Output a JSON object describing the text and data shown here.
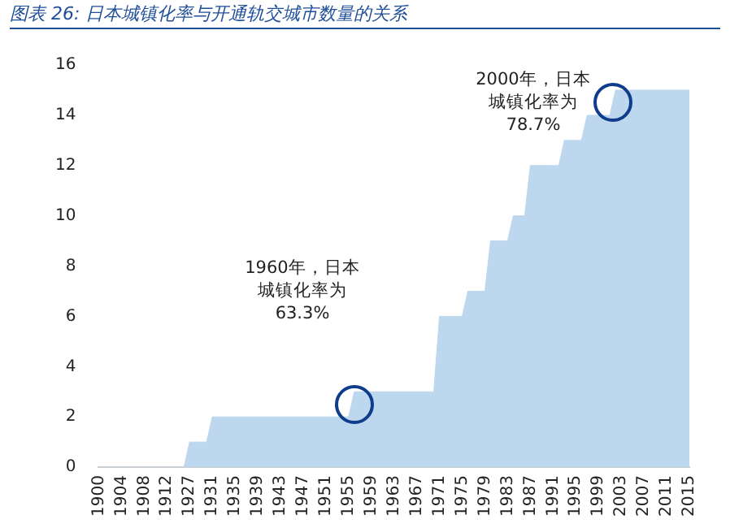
{
  "chart_data": {
    "type": "area",
    "title": "图表 26: 日本城镇化率与开通轨交城市数量的关系",
    "categories": [
      "1900",
      null,
      null,
      null,
      "1904",
      null,
      null,
      null,
      "1908",
      null,
      null,
      null,
      "1912",
      null,
      null,
      null,
      "1927",
      null,
      null,
      null,
      "1931",
      null,
      null,
      null,
      "1935",
      null,
      null,
      null,
      "1939",
      null,
      null,
      null,
      "1943",
      null,
      null,
      null,
      "1947",
      null,
      null,
      null,
      "1951",
      null,
      null,
      null,
      "1955",
      null,
      null,
      null,
      "1959",
      null,
      null,
      null,
      "1963",
      null,
      null,
      null,
      "1967",
      null,
      null,
      null,
      "1971",
      null,
      null,
      null,
      "1975",
      null,
      null,
      null,
      "1979",
      null,
      null,
      null,
      "1983",
      null,
      null,
      null,
      "1987",
      null,
      null,
      null,
      "1991",
      null,
      null,
      null,
      "1995",
      null,
      null,
      null,
      "1999",
      null,
      null,
      null,
      "2003",
      null,
      null,
      null,
      "2007",
      null,
      null,
      null,
      "2011",
      null,
      null,
      null,
      "2015"
    ],
    "values": [
      0,
      0,
      0,
      0,
      0,
      0,
      0,
      0,
      0,
      0,
      0,
      0,
      0,
      0,
      0,
      0,
      1,
      1,
      1,
      1,
      2,
      2,
      2,
      2,
      2,
      2,
      2,
      2,
      2,
      2,
      2,
      2,
      2,
      2,
      2,
      2,
      2,
      2,
      2,
      2,
      2,
      2,
      2,
      2,
      2,
      3,
      3,
      3,
      3,
      3,
      3,
      3,
      3,
      3,
      3,
      3,
      3,
      3,
      3,
      3,
      6,
      6,
      6,
      6,
      6,
      7,
      7,
      7,
      7,
      9,
      9,
      9,
      9,
      10,
      10,
      10,
      12,
      12,
      12,
      12,
      12,
      12,
      13,
      13,
      13,
      13,
      14,
      14,
      14,
      14,
      14,
      15,
      15,
      15,
      15,
      15,
      15,
      15,
      15,
      15,
      15,
      15,
      15,
      15,
      15
    ],
    "color": "#bdd7ee",
    "ylim": [
      0,
      16
    ],
    "yticks": [
      0,
      2,
      4,
      6,
      8,
      10,
      12,
      14,
      16
    ],
    "grid": false,
    "legend": false,
    "annotations": [
      "1960年，日本城镇化率为\n63.3%",
      "2000年，日本城镇化率为\n78.7%"
    ]
  }
}
